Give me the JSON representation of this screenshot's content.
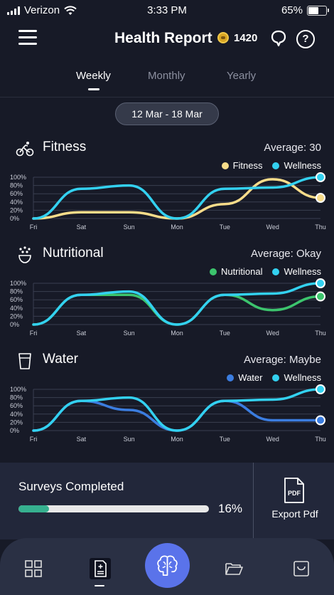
{
  "status": {
    "carrier": "Verizon",
    "time": "3:33 PM",
    "battery": "65%",
    "battery_level": 0.65
  },
  "header": {
    "title": "Health Report",
    "coins": "1420"
  },
  "tabs": [
    {
      "label": "Weekly",
      "active": true
    },
    {
      "label": "Monthly",
      "active": false
    },
    {
      "label": "Yearly",
      "active": false
    }
  ],
  "date_range": "12 Mar - 18 Mar",
  "sections": [
    {
      "title": "Fitness",
      "icon": "bicycle-icon",
      "average": "Average: 30",
      "legend": [
        {
          "label": "Fitness",
          "color": "#f7dc8a"
        },
        {
          "label": "Wellness",
          "color": "#33d1f0"
        }
      ]
    },
    {
      "title": "Nutritional",
      "icon": "food-icon",
      "average": "Average: Okay",
      "legend": [
        {
          "label": "Nutritional",
          "color": "#3cc46d"
        },
        {
          "label": "Wellness",
          "color": "#33d1f0"
        }
      ]
    },
    {
      "title": "Water",
      "icon": "glass-icon",
      "average": "Average: Maybe",
      "legend": [
        {
          "label": "Water",
          "color": "#3b7de0"
        },
        {
          "label": "Wellness",
          "color": "#33d1f0"
        }
      ]
    }
  ],
  "chart_data": [
    {
      "type": "line",
      "categories": [
        "Fri",
        "Sat",
        "Sun",
        "Mon",
        "Tue",
        "Wed",
        "Thu"
      ],
      "yticks": [
        "100%",
        "80%",
        "60%",
        "40%",
        "20%",
        "0%"
      ],
      "ylim": [
        0,
        100
      ],
      "series": [
        {
          "name": "Fitness",
          "color": "#f7dc8a",
          "values": [
            0,
            15,
            15,
            0,
            35,
            95,
            50
          ]
        },
        {
          "name": "Wellness",
          "color": "#33d1f0",
          "values": [
            0,
            72,
            80,
            0,
            72,
            75,
            100
          ]
        }
      ]
    },
    {
      "type": "line",
      "categories": [
        "Fri",
        "Sat",
        "Sun",
        "Mon",
        "Tue",
        "Wed",
        "Thu"
      ],
      "yticks": [
        "100%",
        "80%",
        "60%",
        "40%",
        "20%",
        "0%"
      ],
      "ylim": [
        0,
        100
      ],
      "series": [
        {
          "name": "Nutritional",
          "color": "#3cc46d",
          "values": [
            0,
            72,
            72,
            0,
            72,
            35,
            68
          ]
        },
        {
          "name": "Wellness",
          "color": "#33d1f0",
          "values": [
            0,
            72,
            80,
            0,
            72,
            75,
            100
          ]
        }
      ]
    },
    {
      "type": "line",
      "categories": [
        "Fri",
        "Sat",
        "Sun",
        "Mon",
        "Tue",
        "Wed",
        "Thu"
      ],
      "yticks": [
        "100%",
        "80%",
        "60%",
        "40%",
        "20%",
        "0%"
      ],
      "ylim": [
        0,
        100
      ],
      "series": [
        {
          "name": "Water",
          "color": "#3b7de0",
          "values": [
            0,
            72,
            50,
            0,
            72,
            25,
            25
          ]
        },
        {
          "name": "Wellness",
          "color": "#33d1f0",
          "values": [
            0,
            72,
            80,
            0,
            72,
            75,
            100
          ]
        }
      ]
    }
  ],
  "surveys": {
    "label": "Surveys Completed",
    "percent_text": "16%",
    "progress": 0.16
  },
  "export": {
    "label": "Export Pdf",
    "icon_text": "PDF"
  },
  "tabbar": {
    "items": [
      "grid-icon",
      "report-icon",
      "brain-icon",
      "folder-icon",
      "inbox-icon"
    ],
    "active": "report-icon"
  }
}
